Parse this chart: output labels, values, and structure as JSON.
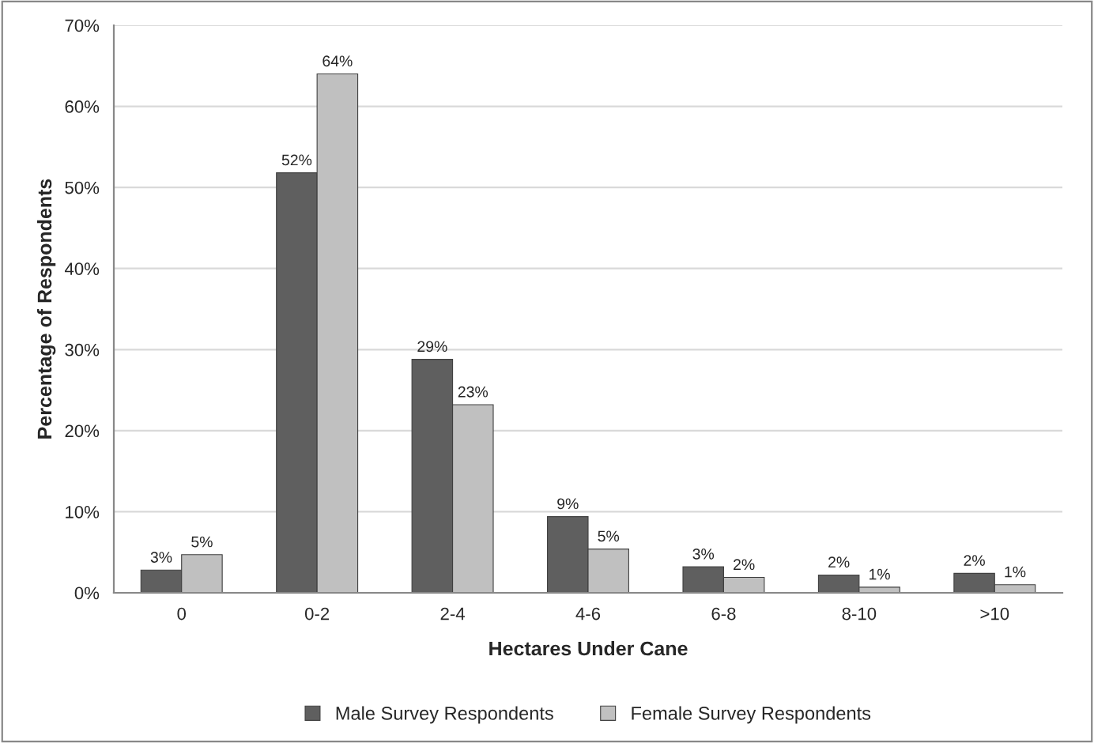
{
  "chart_data": {
    "type": "bar",
    "xlabel": "Hectares Under Cane",
    "ylabel": "Percentage of Respondents",
    "categories": [
      "0",
      "0-2",
      "2-4",
      "4-6",
      "6-8",
      "8-10",
      ">10"
    ],
    "series": [
      {
        "name": "Male Survey Respondents",
        "color": "#5f5f5f",
        "values": [
          2.8,
          51.8,
          28.8,
          9.4,
          3.2,
          2.2,
          2.4
        ],
        "value_labels": [
          "3%",
          "52%",
          "29%",
          "9%",
          "3%",
          "2%",
          "2%"
        ]
      },
      {
        "name": "Female Survey Respondents",
        "color": "#c0c0c0",
        "values": [
          4.7,
          64.0,
          23.2,
          5.4,
          1.9,
          0.7,
          1.0
        ],
        "value_labels": [
          "5%",
          "64%",
          "23%",
          "5%",
          "2%",
          "1%",
          "1%"
        ]
      }
    ],
    "ylim": [
      0,
      70
    ],
    "yticks": [
      {
        "value": 0,
        "label": "0%"
      },
      {
        "value": 10,
        "label": "10%"
      },
      {
        "value": 20,
        "label": "20%"
      },
      {
        "value": 30,
        "label": "30%"
      },
      {
        "value": 40,
        "label": "40%"
      },
      {
        "value": 50,
        "label": "50%"
      },
      {
        "value": 60,
        "label": "60%"
      },
      {
        "value": 70,
        "label": "70%"
      }
    ],
    "grid": "y",
    "legend": "bottom"
  }
}
